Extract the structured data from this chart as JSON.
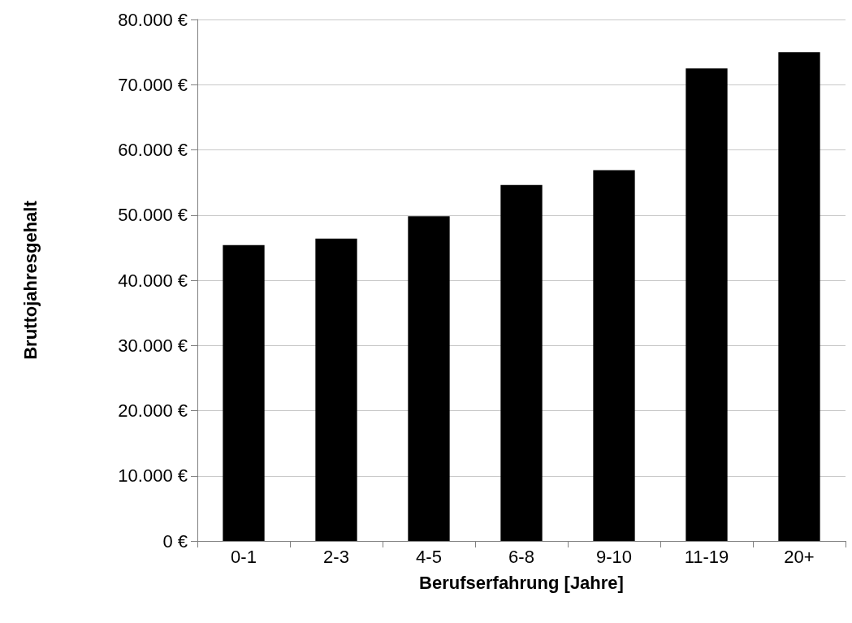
{
  "chart_data": {
    "type": "bar",
    "xlabel": "Berufserfahrung [Jahre]",
    "ylabel": "Bruttojahresgehalt",
    "categories": [
      "0-1",
      "2-3",
      "4-5",
      "6-8",
      "9-10",
      "11-19",
      "20+"
    ],
    "values": [
      45400,
      46400,
      49800,
      54600,
      56900,
      72500,
      75000
    ],
    "color": "#000000",
    "ylim": [
      0,
      80000
    ],
    "yticks": [
      {
        "value": 0,
        "label": "0 €"
      },
      {
        "value": 10000,
        "label": "10.000 €"
      },
      {
        "value": 20000,
        "label": "20.000 €"
      },
      {
        "value": 30000,
        "label": "30.000 €"
      },
      {
        "value": 40000,
        "label": "40.000 €"
      },
      {
        "value": 50000,
        "label": "50.000 €"
      },
      {
        "value": 60000,
        "label": "60.000 €"
      },
      {
        "value": 70000,
        "label": "70.000 €"
      },
      {
        "value": 80000,
        "label": "80.000 €"
      }
    ],
    "grid": "y"
  }
}
